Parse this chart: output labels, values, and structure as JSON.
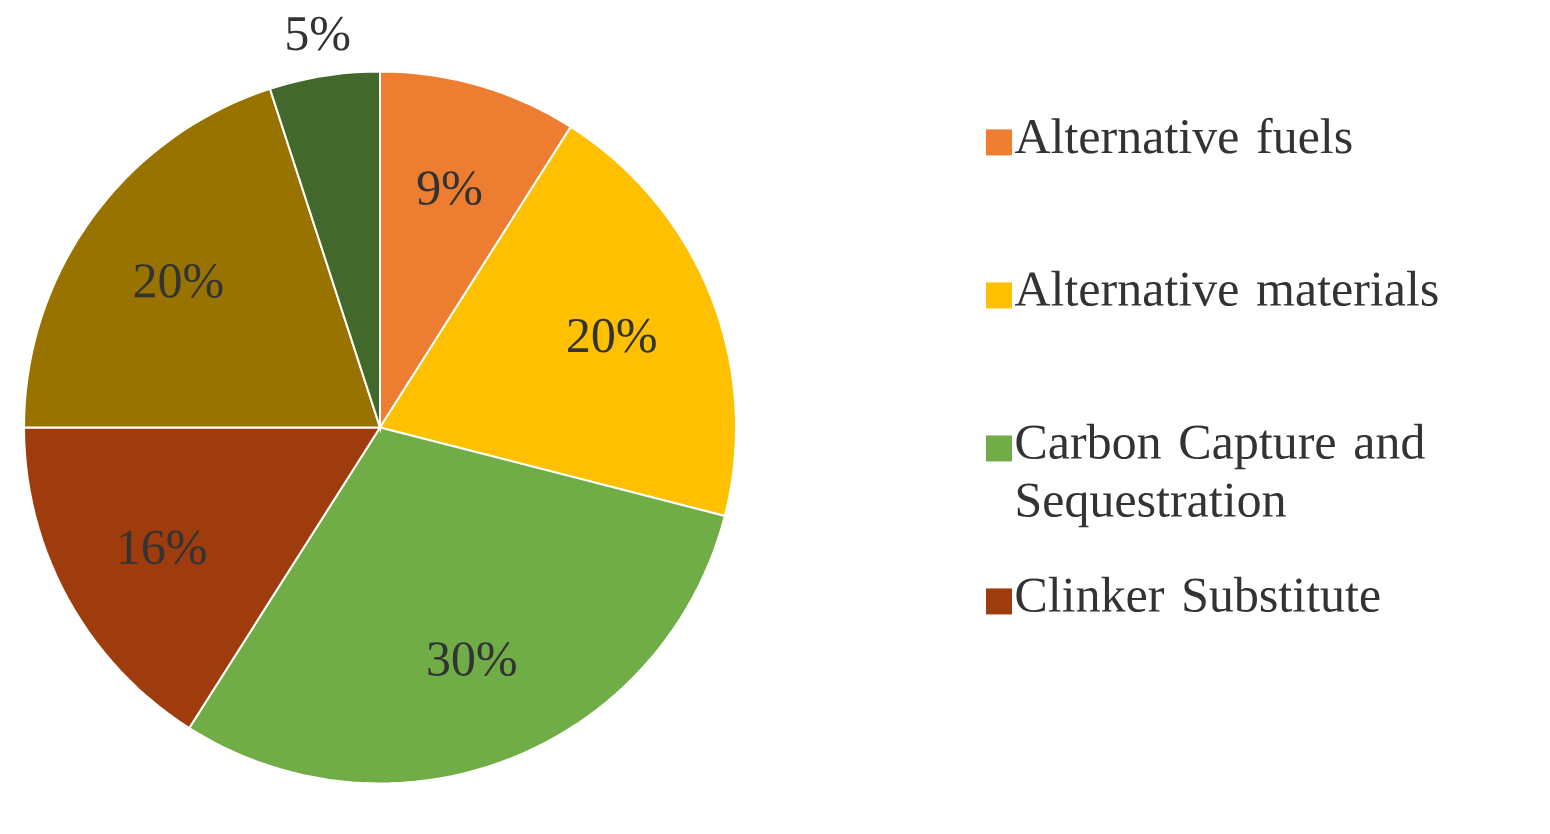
{
  "chart_data": {
    "type": "pie",
    "categories": [
      "Alternative fuels",
      "Alternative materials",
      "Carbon Capture and Sequestration",
      "Clinker Substitute",
      null,
      null
    ],
    "values": [
      9,
      20,
      30,
      16,
      20,
      5
    ],
    "value_labels": [
      "9%",
      "20%",
      "30%",
      "16%",
      "20%",
      "5%"
    ],
    "colors": [
      "#ed7d31",
      "#ffc000",
      "#70ad47",
      "#9e3c0e",
      "#997300",
      "#43682b"
    ],
    "legend": "right"
  }
}
